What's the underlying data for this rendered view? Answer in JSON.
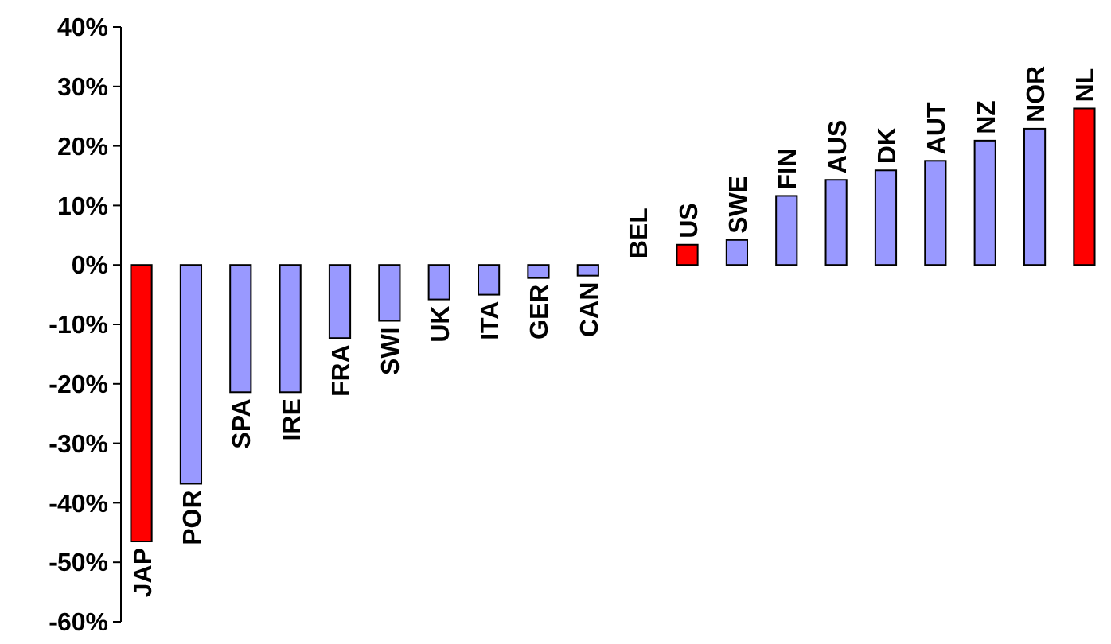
{
  "chart_data": {
    "type": "bar",
    "categories": [
      "JAP",
      "POR",
      "SPA",
      "IRE",
      "FRA",
      "SWI",
      "UK",
      "ITA",
      "GER",
      "CAN",
      "BEL",
      "US",
      "SWE",
      "FIN",
      "AUS",
      "DK",
      "AUT",
      "NZ",
      "NOR",
      "NL"
    ],
    "values": [
      -46.5,
      -36.8,
      -21.4,
      -21.4,
      -12.3,
      -9.4,
      -5.8,
      -5.0,
      -2.2,
      -1.8,
      0,
      3.4,
      4.2,
      11.6,
      14.3,
      15.9,
      17.5,
      20.9,
      22.9,
      26.3
    ],
    "colors": [
      "#ff0000",
      "#9999ff",
      "#9999ff",
      "#9999ff",
      "#9999ff",
      "#9999ff",
      "#9999ff",
      "#9999ff",
      "#9999ff",
      "#9999ff",
      "#9999ff",
      "#ff0000",
      "#9999ff",
      "#9999ff",
      "#9999ff",
      "#9999ff",
      "#9999ff",
      "#9999ff",
      "#9999ff",
      "#ff0000"
    ],
    "ylim": [
      -60,
      40
    ],
    "yticks": [
      {
        "value": -60,
        "label": "-60%"
      },
      {
        "value": -50,
        "label": "-50%"
      },
      {
        "value": -40,
        "label": "-40%"
      },
      {
        "value": -30,
        "label": "-30%"
      },
      {
        "value": -20,
        "label": "-20%"
      },
      {
        "value": -10,
        "label": "-10%"
      },
      {
        "value": 0,
        "label": "0%"
      },
      {
        "value": 10,
        "label": "10%"
      },
      {
        "value": 20,
        "label": "20%"
      },
      {
        "value": 30,
        "label": "30%"
      },
      {
        "value": 40,
        "label": "40%"
      }
    ],
    "grid": false
  }
}
